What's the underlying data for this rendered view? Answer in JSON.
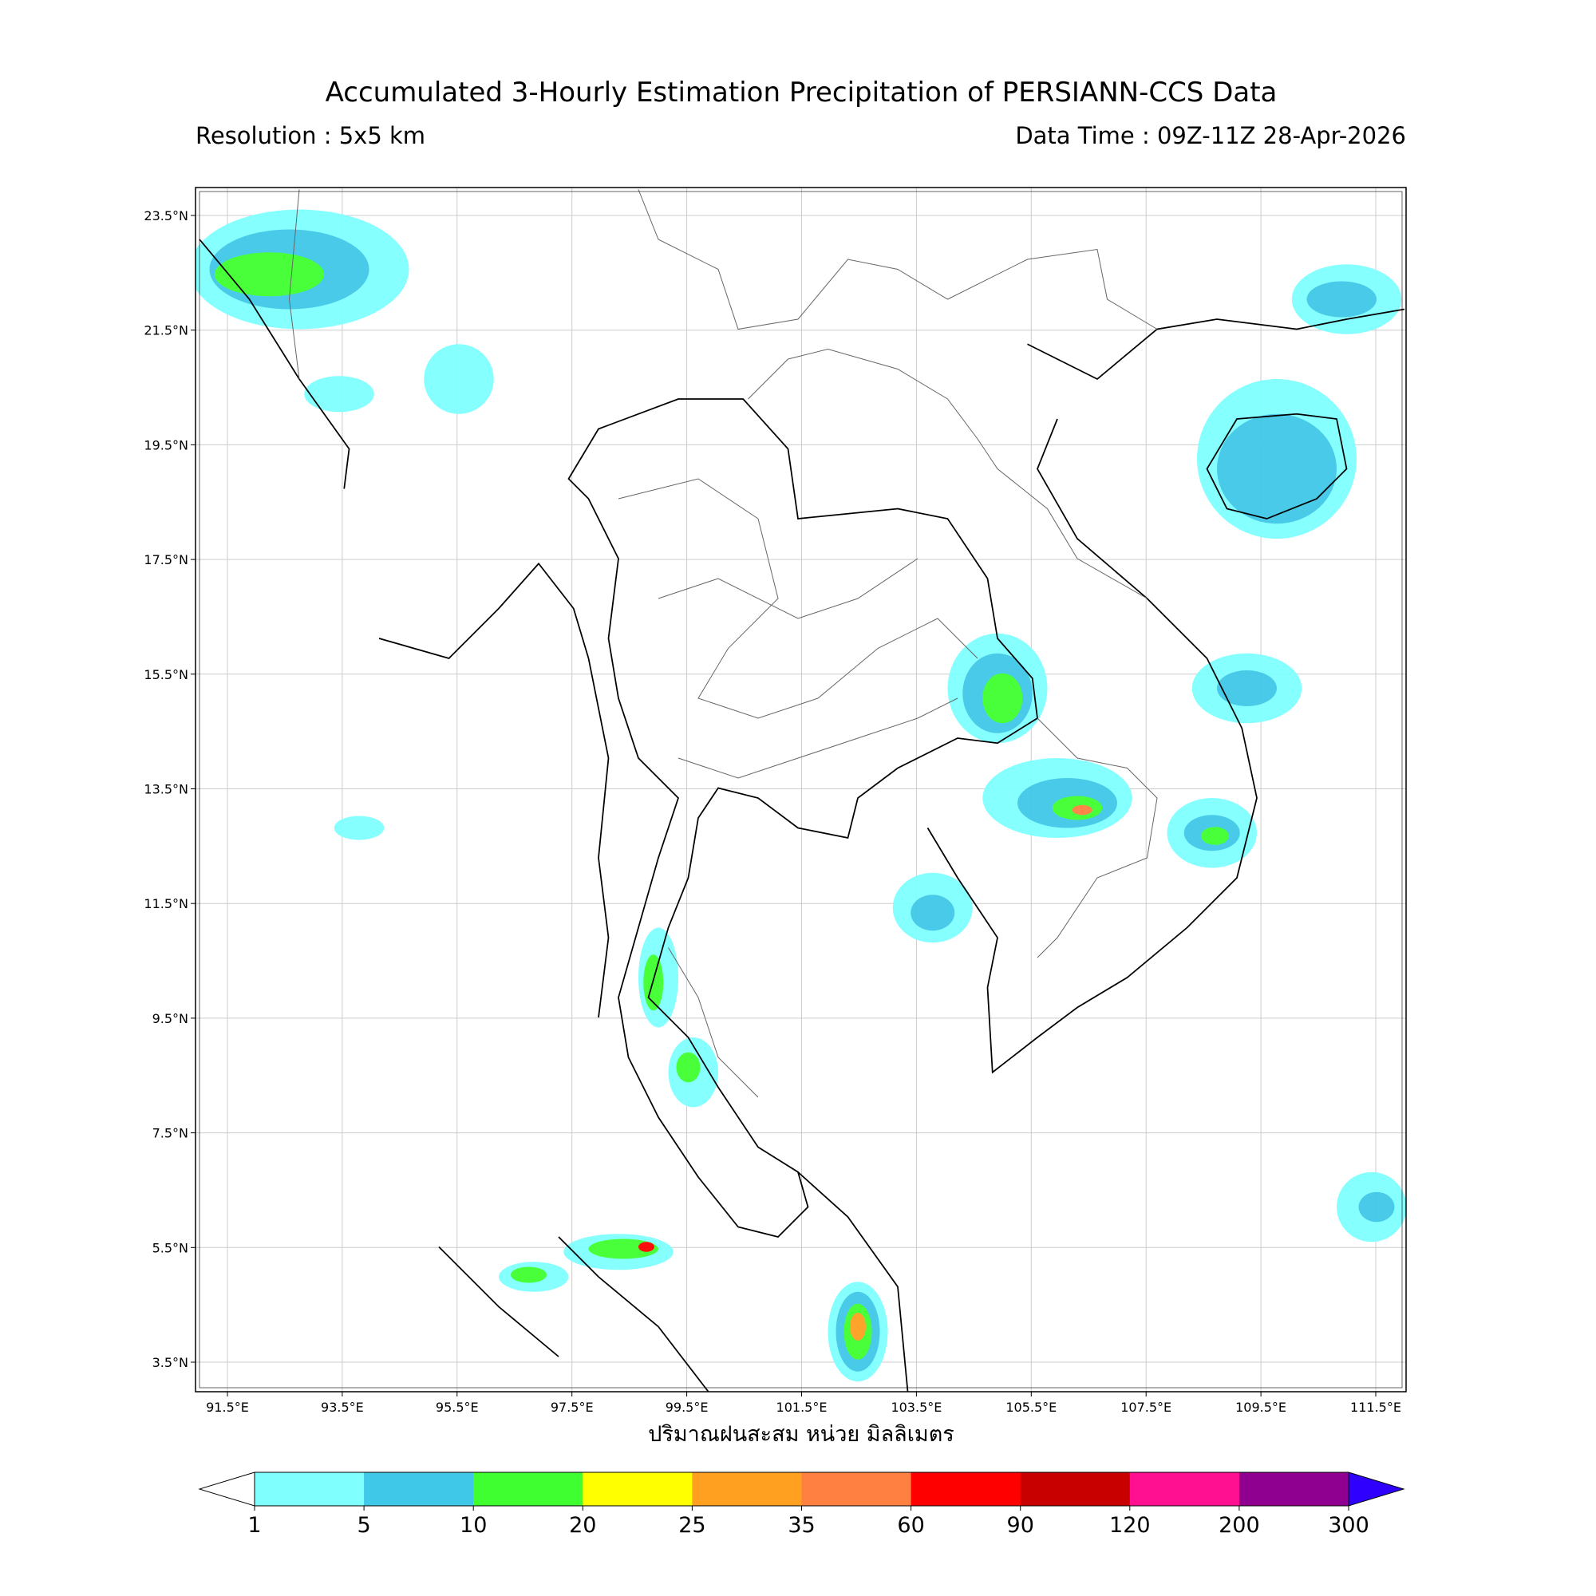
{
  "header": {
    "title": "Accumulated 3-Hourly Estimation Precipitation of PERSIANN-CCS Data",
    "resolution": "Resolution : 5x5 km",
    "data_time": "Data Time : 09Z-11Z 28-Apr-2026"
  },
  "map": {
    "lat_ticks": [
      {
        "value": 23.5,
        "label": "23.5°N"
      },
      {
        "value": 21.5,
        "label": "21.5°N"
      },
      {
        "value": 19.5,
        "label": "19.5°N"
      },
      {
        "value": 17.5,
        "label": "17.5°N"
      },
      {
        "value": 15.5,
        "label": "15.5°N"
      },
      {
        "value": 13.5,
        "label": "13.5°N"
      },
      {
        "value": 11.5,
        "label": "11.5°N"
      },
      {
        "value": 9.5,
        "label": "9.5°N"
      },
      {
        "value": 7.5,
        "label": "7.5°N"
      },
      {
        "value": 5.5,
        "label": "5.5°N"
      },
      {
        "value": 3.5,
        "label": "3.5°N"
      }
    ],
    "lon_ticks": [
      {
        "value": 91.5,
        "label": "91.5°E"
      },
      {
        "value": 93.5,
        "label": "93.5°E"
      },
      {
        "value": 95.5,
        "label": "95.5°E"
      },
      {
        "value": 97.5,
        "label": "97.5°E"
      },
      {
        "value": 99.5,
        "label": "99.5°E"
      },
      {
        "value": 101.5,
        "label": "101.5°E"
      },
      {
        "value": 103.5,
        "label": "103.5°E"
      },
      {
        "value": 105.5,
        "label": "105.5°E"
      },
      {
        "value": 107.5,
        "label": "107.5°E"
      },
      {
        "value": 109.5,
        "label": "109.5°E"
      },
      {
        "value": 111.5,
        "label": "111.5°E"
      }
    ]
  },
  "colorbar": {
    "label": "ปริมาณฝนสะสม หน่วย มิลลิเมตร",
    "levels": [
      1,
      5,
      10,
      20,
      25,
      35,
      60,
      90,
      120,
      200,
      300
    ],
    "colors": [
      "#80ffff",
      "#40c8e8",
      "#40ff30",
      "#ffff00",
      "#ffa020",
      "#ff8040",
      "#ff0000",
      "#c80000",
      "#ff1090",
      "#900090"
    ],
    "under_color": "#ffffff",
    "over_color": "#3000ff"
  }
}
